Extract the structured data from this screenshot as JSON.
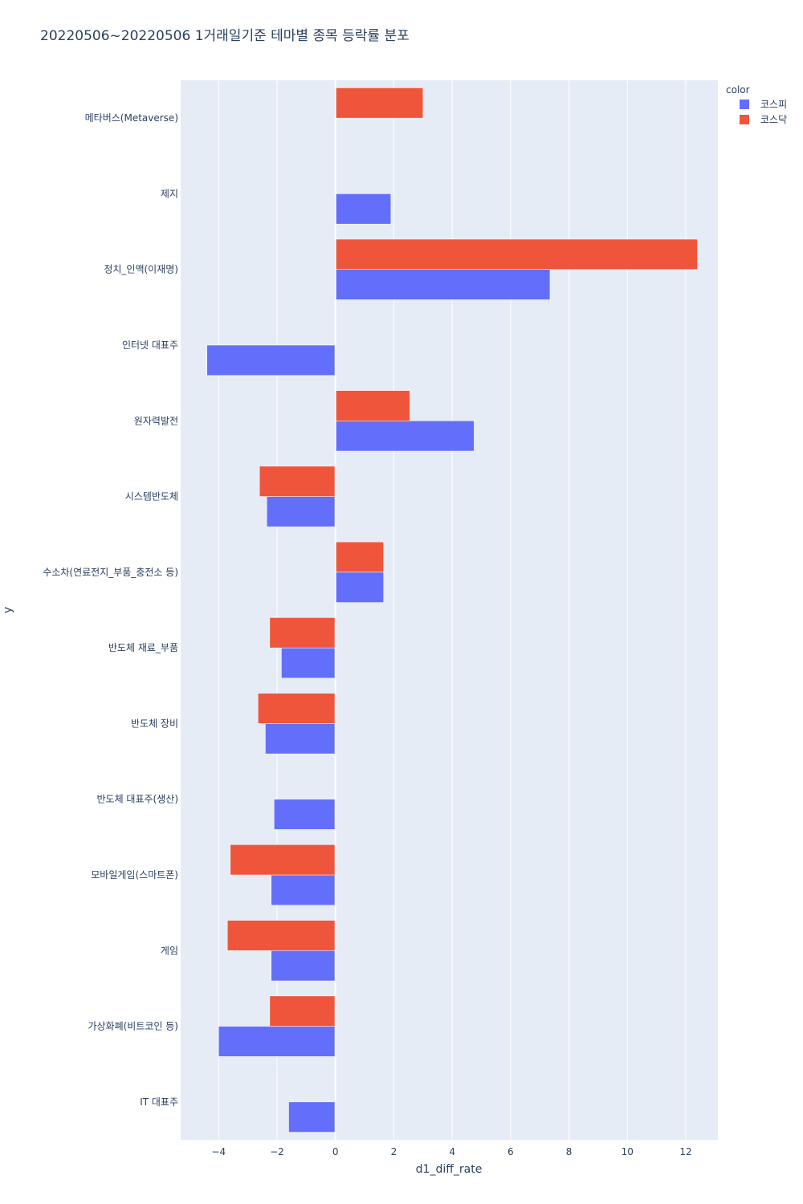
{
  "chart_data": {
    "type": "bar",
    "orientation": "horizontal",
    "title": "20220506~20220506 1거래일기준 테마별 종목 등락률 분포",
    "xlabel": "d1_diff_rate",
    "ylabel": "y",
    "xlim": [
      -5.3,
      13.1
    ],
    "xticks": [
      -4,
      -2,
      0,
      2,
      4,
      6,
      8,
      10,
      12
    ],
    "xtick_labels": [
      "−4",
      "−2",
      "0",
      "2",
      "4",
      "6",
      "8",
      "10",
      "12"
    ],
    "grid": true,
    "legend": {
      "title": "color",
      "placement": "top-right"
    },
    "categories": [
      "메타버스(Metaverse)",
      "제지",
      "정치_인맥(이재명)",
      "인터넷 대표주",
      "원자력발전",
      "시스템반도체",
      "수소차(연료전지_부품_충전소 등)",
      "반도체 재료_부품",
      "반도체 장비",
      "반도체 대표주(생산)",
      "모바일게임(스마트폰)",
      "게임",
      "가상화폐(비트코인 등)",
      "IT 대표주"
    ],
    "series": [
      {
        "name": "코스피",
        "color": "#636efa",
        "values": [
          null,
          1.9,
          7.35,
          -4.4,
          4.75,
          -2.35,
          1.65,
          -1.85,
          -2.4,
          -2.1,
          -2.2,
          -2.2,
          -4.0,
          -1.6
        ]
      },
      {
        "name": "코스닥",
        "color": "#ef553b",
        "values": [
          3.0,
          null,
          12.4,
          null,
          2.55,
          -2.6,
          1.65,
          -2.25,
          -2.65,
          null,
          -3.6,
          -3.7,
          -2.25,
          null
        ]
      }
    ]
  },
  "colors": {
    "plot_background": "#e5ecf6",
    "grid": "#ffffff",
    "text": "#2a3f5f"
  }
}
